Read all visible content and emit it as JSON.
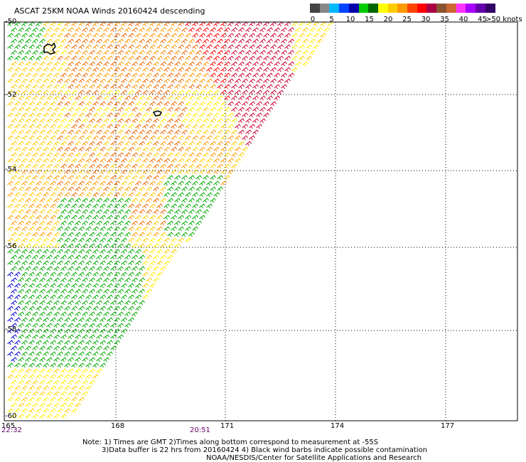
{
  "title": "ASCAT 25KM NOAA Winds 20160424 descending",
  "legend": {
    "colors": [
      "#444444",
      "#888888",
      "#00b8ff",
      "#0044ff",
      "#0000aa",
      "#00cc00",
      "#006600",
      "#ffff00",
      "#ffcc00",
      "#ff9900",
      "#ff4400",
      "#ff0000",
      "#aa0044",
      "#885533",
      "#cc6633",
      "#ff33ff",
      "#aa00ff",
      "#6600aa",
      "#330066"
    ],
    "ticks": [
      "0",
      "5",
      "10",
      "15",
      "20",
      "25",
      "30",
      "35",
      "40",
      "45"
    ],
    "units": ">50 knots"
  },
  "map": {
    "lat_labels": [
      "-50",
      "-52",
      "-54",
      "-56",
      "-58",
      "-60"
    ],
    "lon_labels": [
      "165",
      "168",
      "171",
      "174",
      "177"
    ],
    "times": [
      "22:32",
      "20:51"
    ]
  },
  "notes": [
    "Note: 1) Times are GMT 2)Times along bottom correspond to measurement at -55S",
    "3)Data buffer is 22 hrs from 20160424 4) Black wind barbs indicate possible contamination",
    "NOAA/NESDIS/Center for Satellite Applications and Research"
  ]
}
